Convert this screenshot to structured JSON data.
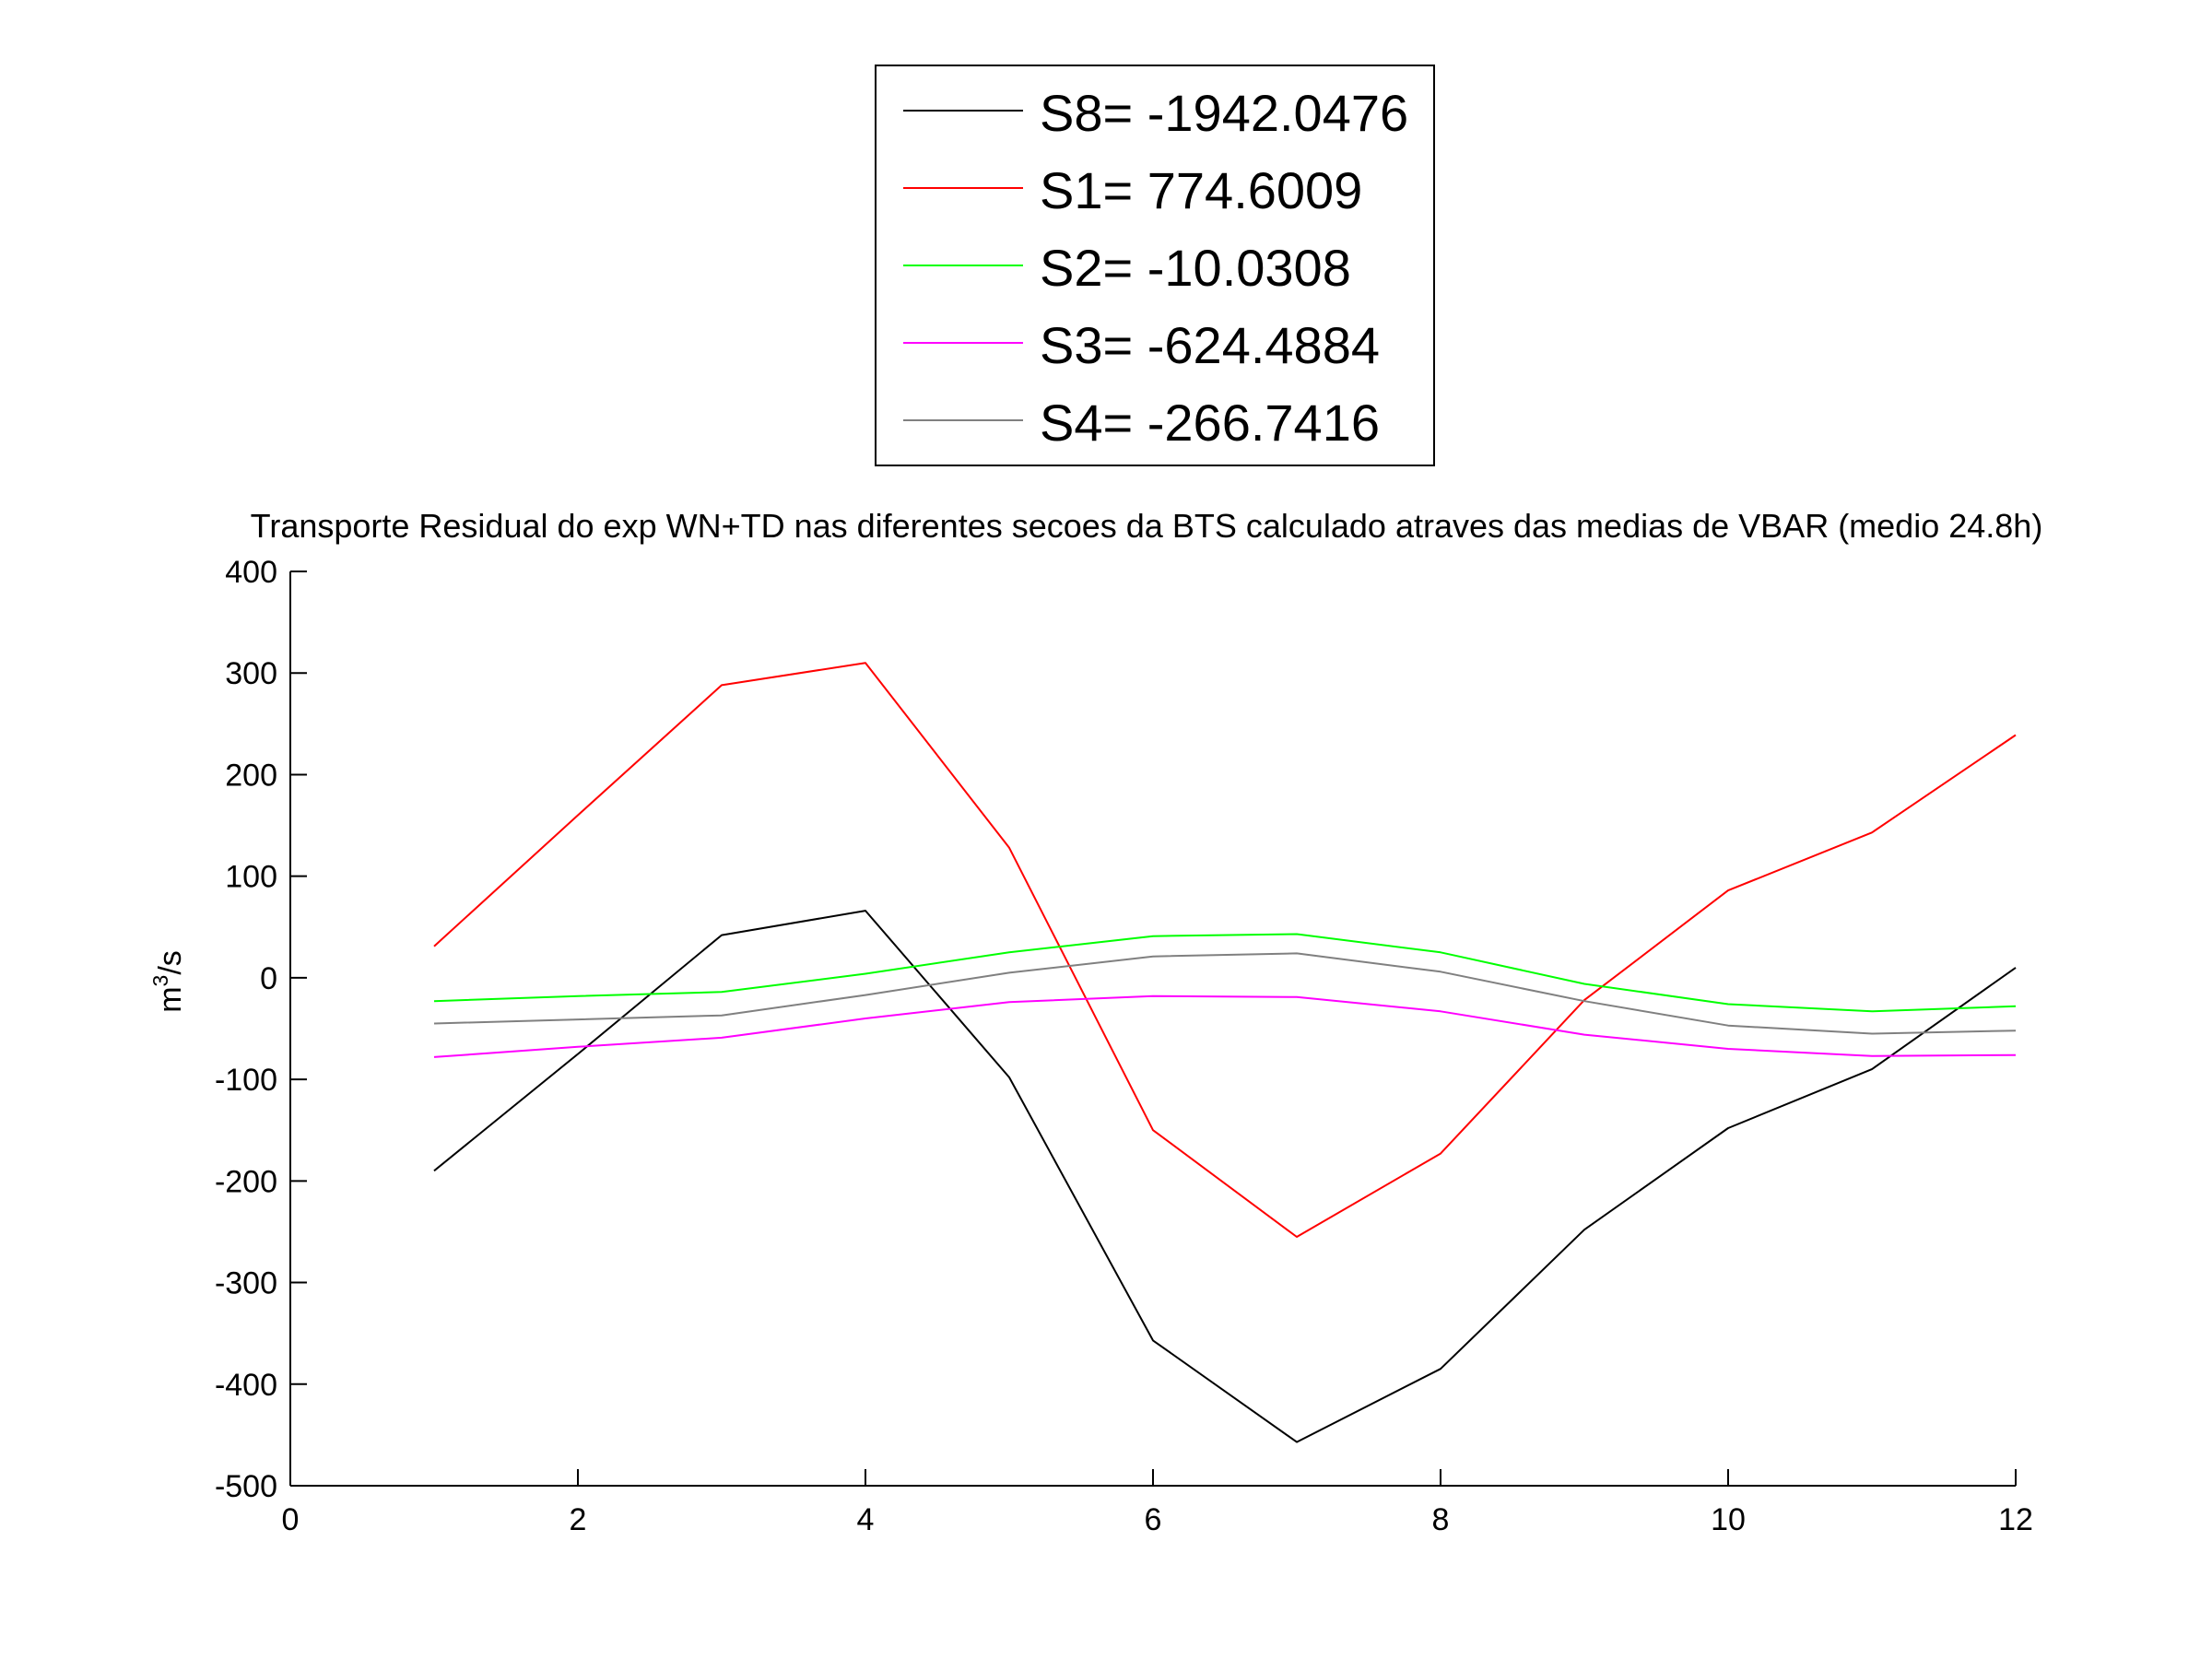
{
  "chart_data": {
    "type": "line",
    "title": "Transporte Residual do exp WN+TD nas diferentes secoes da BTS calculado atraves das medias de VBAR (medio 24.8h)",
    "ylabel_base": "m",
    "ylabel_sup": "3",
    "ylabel_tail": "/s",
    "xlim": [
      0,
      12
    ],
    "ylim": [
      -500,
      400
    ],
    "xticks": [
      0,
      2,
      4,
      6,
      8,
      10,
      12
    ],
    "yticks": [
      400,
      300,
      200,
      100,
      0,
      -100,
      -200,
      -300,
      -400,
      -500
    ],
    "x": [
      1,
      2,
      3,
      4,
      5,
      6,
      7,
      8,
      9,
      10,
      11,
      12
    ],
    "legend_position": "top-center, outside plot",
    "series": [
      {
        "name": "S8= -1942.0476",
        "color": "#000000",
        "values": [
          -190,
          -75,
          42,
          66,
          -98,
          -357,
          -457,
          -385,
          -248,
          -148,
          -90,
          10
        ]
      },
      {
        "name": "S1= 774.6009",
        "color": "#ff0000",
        "values": [
          31,
          160,
          288,
          310,
          128,
          -150,
          -255,
          -173,
          -22,
          86,
          143,
          239
        ]
      },
      {
        "name": "S2= -10.0308",
        "color": "#00ff00",
        "values": [
          -23,
          -18,
          -14,
          4,
          25,
          41,
          43,
          25,
          -6,
          -26,
          -33,
          -28
        ]
      },
      {
        "name": "S3= -624.4884",
        "color": "#ff00ff",
        "values": [
          -78,
          -68,
          -59,
          -40,
          -24,
          -18,
          -19,
          -33,
          -56,
          -70,
          -77,
          -76
        ]
      },
      {
        "name": "S4= -266.7416",
        "color": "#808080",
        "values": [
          -45,
          -41,
          -37,
          -17,
          5,
          21,
          24,
          6,
          -23,
          -47,
          -55,
          -52
        ]
      }
    ]
  }
}
